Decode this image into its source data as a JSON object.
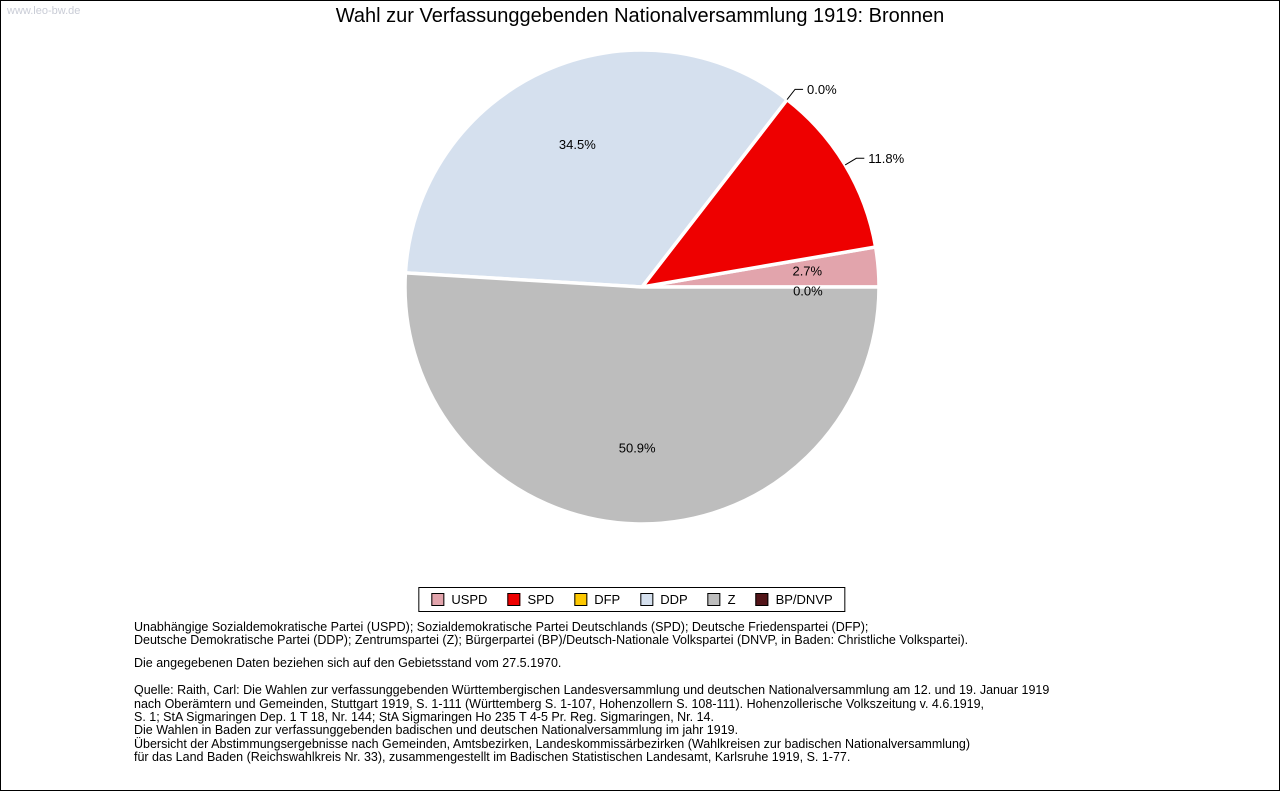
{
  "watermark": "www.leo-bw.de",
  "title": "Wahl zur Verfassunggebenden Nationalversammlung 1919: Bronnen",
  "chart_data": {
    "type": "pie",
    "title": "Wahl zur Verfassunggebenden Nationalversammlung 1919: Bronnen",
    "unit": "%",
    "start_angle_deg": 0,
    "direction": "counterclockwise",
    "legend_position": "bottom",
    "slices": [
      {
        "label": "USPD",
        "value": 2.7,
        "color": "#e2a4ac",
        "label_placement": "inside",
        "label_r_frac": 0.7,
        "label_dy": -2
      },
      {
        "label": "SPD",
        "value": 11.8,
        "color": "#ee0000",
        "label_placement": "leader"
      },
      {
        "label": "DFP",
        "value": 0.0,
        "color": "#fdc800",
        "label_placement": "leader"
      },
      {
        "label": "DDP",
        "value": 34.5,
        "color": "#d5e0ee",
        "label_placement": "inside",
        "label_r_frac": 0.66
      },
      {
        "label": "Z",
        "value": 50.9,
        "color": "#bdbdbd",
        "label_placement": "inside",
        "label_r_frac": 0.68
      },
      {
        "label": "BP/DNVP",
        "value": 0.0,
        "color": "#521418",
        "label_placement": "inside",
        "label_r_frac": 0.7,
        "label_dy": 4
      }
    ]
  },
  "footnotes": {
    "party_lines": [
      "Unabhängige Sozialdemokratische Partei (USPD); Sozialdemokratische Partei Deutschlands (SPD); Deutsche Friedenspartei (DFP);",
      "Deutsche Demokratische Partei (DDP); Zentrumspartei (Z); Bürgerpartei (BP)/Deutsch-Nationale Volkspartei (DNVP, in Baden: Christliche Volkspartei)."
    ],
    "data_note": "Die angegebenen Daten beziehen sich auf den Gebietsstand vom 27.5.1970.",
    "source_lines": [
      "Quelle: Raith, Carl: Die Wahlen zur verfassunggebenden Württembergischen Landesversammlung und deutschen Nationalversammlung am 12. und 19. Januar 1919",
      "nach Oberämtern und Gemeinden, Stuttgart 1919, S. 1-111 (Württemberg S. 1-107, Hohenzollern S. 108-111). Hohenzollerische Volkszeitung v. 4.6.1919,",
      "S. 1; StA Sigmaringen Dep. 1 T 18, Nr. 144; StA Sigmaringen Ho 235 T 4-5 Pr. Reg. Sigmaringen, Nr. 14.",
      "Die Wahlen in Baden zur verfassunggebenden badischen und deutschen Nationalversammlung im jahr 1919.",
      "Übersicht der Abstimmungsergebnisse nach Gemeinden, Amtsbezirken, Landeskommissärbezirken (Wahlkreisen zur badischen Nationalversammlung)",
      "für das Land Baden (Reichswahlkreis Nr. 33), zusammengestellt im Badischen Statistischen Landesamt, Karlsruhe 1919, S. 1-77."
    ]
  }
}
